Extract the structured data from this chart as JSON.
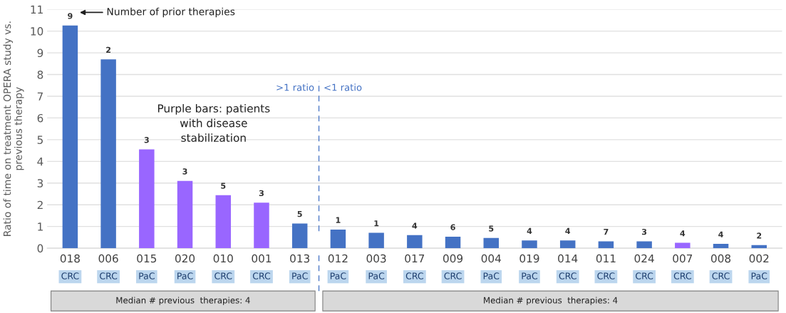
{
  "chart_data": {
    "type": "bar",
    "ylabel": "Ratio of time on treatment OPERA study vs.\nprevious therapy",
    "categories": [
      "018",
      "006",
      "015",
      "020",
      "010",
      "001",
      "013",
      "012",
      "003",
      "017",
      "009",
      "004",
      "019",
      "014",
      "011",
      "024",
      "007",
      "008",
      "002"
    ],
    "values": [
      10.26,
      8.7,
      4.55,
      3.1,
      2.44,
      2.1,
      1.14,
      0.86,
      0.71,
      0.6,
      0.53,
      0.47,
      0.36,
      0.36,
      0.32,
      0.32,
      0.25,
      0.2,
      0.14
    ],
    "colors": [
      "#4472c4",
      "#4472c4",
      "#9966ff",
      "#9966ff",
      "#9966ff",
      "#9966ff",
      "#4472c4",
      "#4472c4",
      "#4472c4",
      "#4472c4",
      "#4472c4",
      "#4472c4",
      "#4472c4",
      "#4472c4",
      "#4472c4",
      "#4472c4",
      "#9966ff",
      "#4472c4",
      "#4472c4"
    ],
    "ylim": [
      0,
      11
    ],
    "yticks": [
      0,
      1,
      2,
      3,
      4,
      5,
      6,
      7,
      8,
      9,
      10,
      11
    ],
    "grid": "y",
    "annotations": [
      "Number of prior therapies",
      "Purple bars: patients\nwith disease\nstabilization",
      ">1 ratio",
      "<1 ratio",
      "Median # previous  therapies: 4",
      "Median # previous  therapies: 4",
      "CRC",
      "CRC",
      "PaC",
      "PaC",
      "CRC",
      "CRC",
      "PaC",
      "PaC",
      "PaC",
      "CRC",
      "CRC",
      "PaC",
      "PaC",
      "CRC",
      "CRC",
      "CRC",
      "CRC",
      "CRC",
      "PaC",
      {
        "text": "9",
        "x": "018",
        "y": 10.26
      },
      {
        "text": "2",
        "x": "006",
        "y": 8.7
      },
      {
        "text": "3",
        "x": "015",
        "y": 4.55
      },
      {
        "text": "3",
        "x": "020",
        "y": 3.1
      },
      {
        "text": "5",
        "x": "010",
        "y": 2.44
      },
      {
        "text": "3",
        "x": "001",
        "y": 2.1
      },
      {
        "text": "5",
        "x": "013",
        "y": 1.14
      },
      {
        "text": "1",
        "x": "012",
        "y": 0.86
      },
      {
        "text": "1",
        "x": "003",
        "y": 0.71
      },
      {
        "text": "4",
        "x": "017",
        "y": 0.6
      },
      {
        "text": "6",
        "x": "009",
        "y": 0.53
      },
      {
        "text": "5",
        "x": "004",
        "y": 0.47
      },
      {
        "text": "4",
        "x": "019",
        "y": 0.36
      },
      {
        "text": "4",
        "x": "014",
        "y": 0.36
      },
      {
        "text": "7",
        "x": "011",
        "y": 0.32
      },
      {
        "text": "3",
        "x": "024",
        "y": 0.32
      },
      {
        "text": "4",
        "x": "007",
        "y": 0.25
      },
      {
        "text": "4",
        "x": "008",
        "y": 0.2
      },
      {
        "text": "2",
        "x": "002",
        "y": 0.14
      }
    ]
  }
}
